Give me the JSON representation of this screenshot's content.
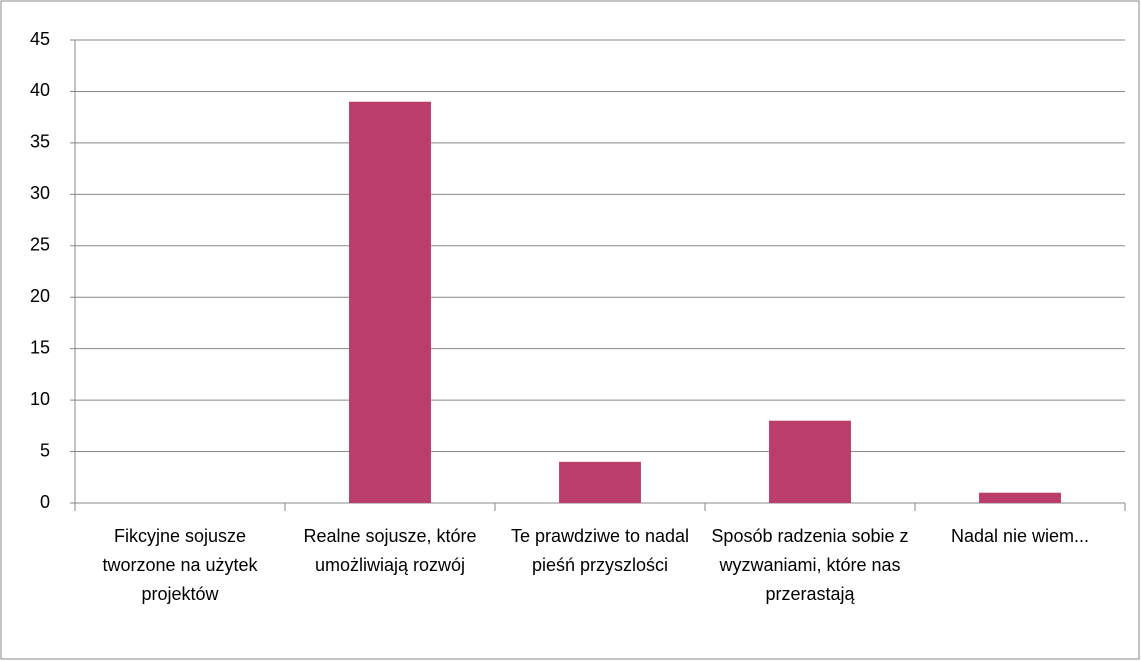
{
  "chart_data": {
    "type": "bar",
    "categories": [
      "Fikcyjne sojusze tworzone na użytek projektów",
      "Realne sojusze, które umożliwiają rozwój",
      "Te prawdziwe to nadal pieśń przyszlości",
      "Sposób radzenia sobie z wyzwaniami, które nas przerastają",
      "Nadal nie wiem..."
    ],
    "values": [
      0,
      39,
      4,
      8,
      1
    ],
    "color": "#bb3e6a",
    "ylim": [
      0,
      45
    ],
    "yticks": [
      0,
      5,
      10,
      15,
      20,
      25,
      30,
      35,
      40,
      45
    ],
    "grid": true
  }
}
